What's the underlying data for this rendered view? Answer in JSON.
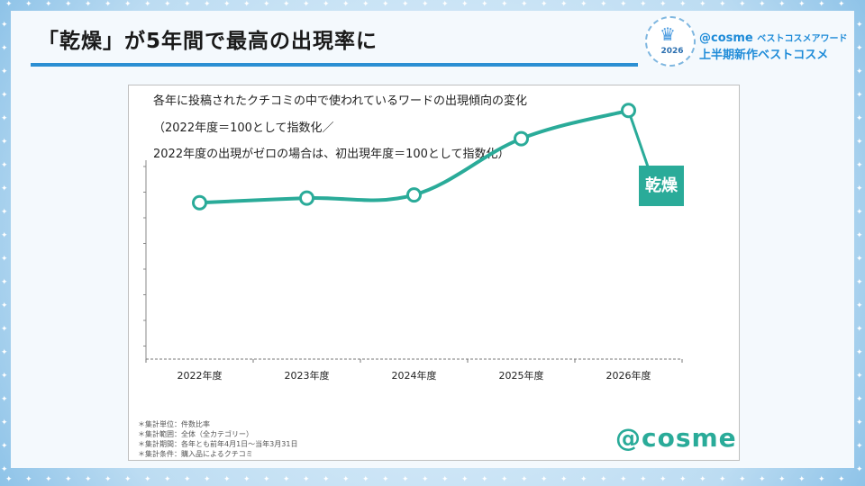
{
  "header": {
    "title": "「乾燥」が5年間で最高の出現率に"
  },
  "badge": {
    "year": "2026",
    "brand": "@cosme",
    "award": "ベストコスメアワード",
    "category": "上半期新作ベストコスメ"
  },
  "chart": {
    "title": "各年に投稿されたクチコミの中で使われているワードの出現傾向の変化",
    "subtitle_line1": "（2022年度＝100として指数化／",
    "subtitle_line2": "2022年度の出現がゼロの場合は、初出現年度＝100として指数化）",
    "series_label": "乾燥"
  },
  "chart_data": {
    "type": "line",
    "categories": [
      "2022年度",
      "2023年度",
      "2024年度",
      "2025年度",
      "2026年度"
    ],
    "series": [
      {
        "name": "乾燥",
        "values": [
          100,
          103,
          105,
          141,
          159
        ]
      }
    ],
    "title": "各年に投稿されたクチコミの中で使われているワードの出現傾向の変化",
    "xlabel": "",
    "ylabel": "",
    "ylim": [
      0,
      175
    ],
    "grid": false,
    "legend": "none",
    "color": "#2aab99"
  },
  "notes": [
    "＊集計単位：件数比率",
    "＊集計範囲：全体（全カテゴリー）",
    "＊集計期間：各年とも前年4月1日〜当年3月31日",
    "＊集計条件：購入品によるクチコミ"
  ],
  "logo": "@cosme"
}
